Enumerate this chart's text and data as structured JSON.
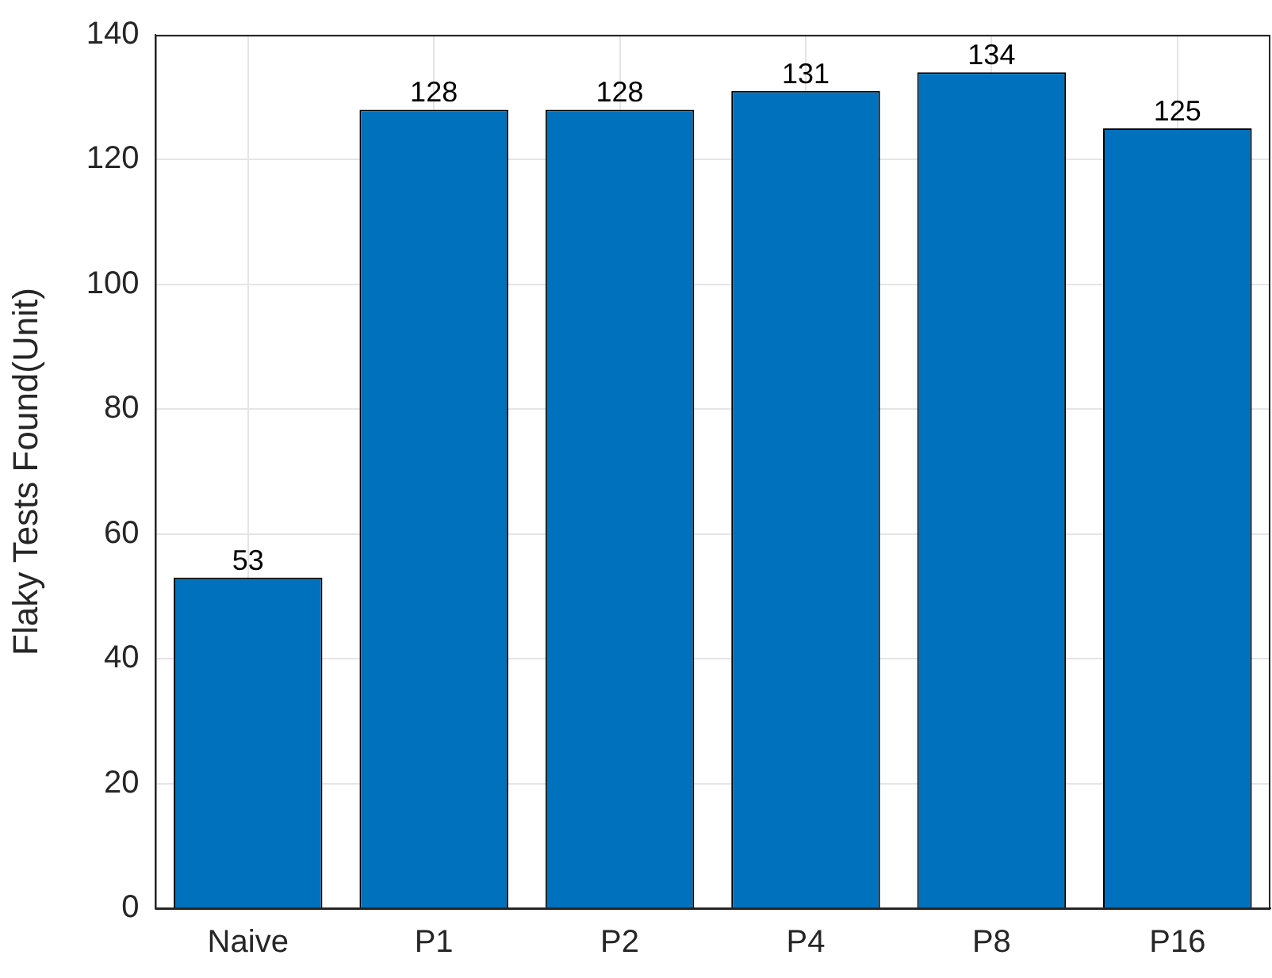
{
  "chart_data": {
    "type": "bar",
    "ylabel": "Flaky Tests Found(Unit)",
    "categories": [
      "Naive",
      "P1",
      "P2",
      "P4",
      "P8",
      "P16"
    ],
    "values": [
      53,
      128,
      128,
      131,
      134,
      125
    ],
    "color": "#0072bd",
    "ylim": [
      0,
      140
    ],
    "yticks": [
      0,
      20,
      40,
      60,
      80,
      100,
      120,
      140
    ],
    "grid": true,
    "data_labels": true
  }
}
